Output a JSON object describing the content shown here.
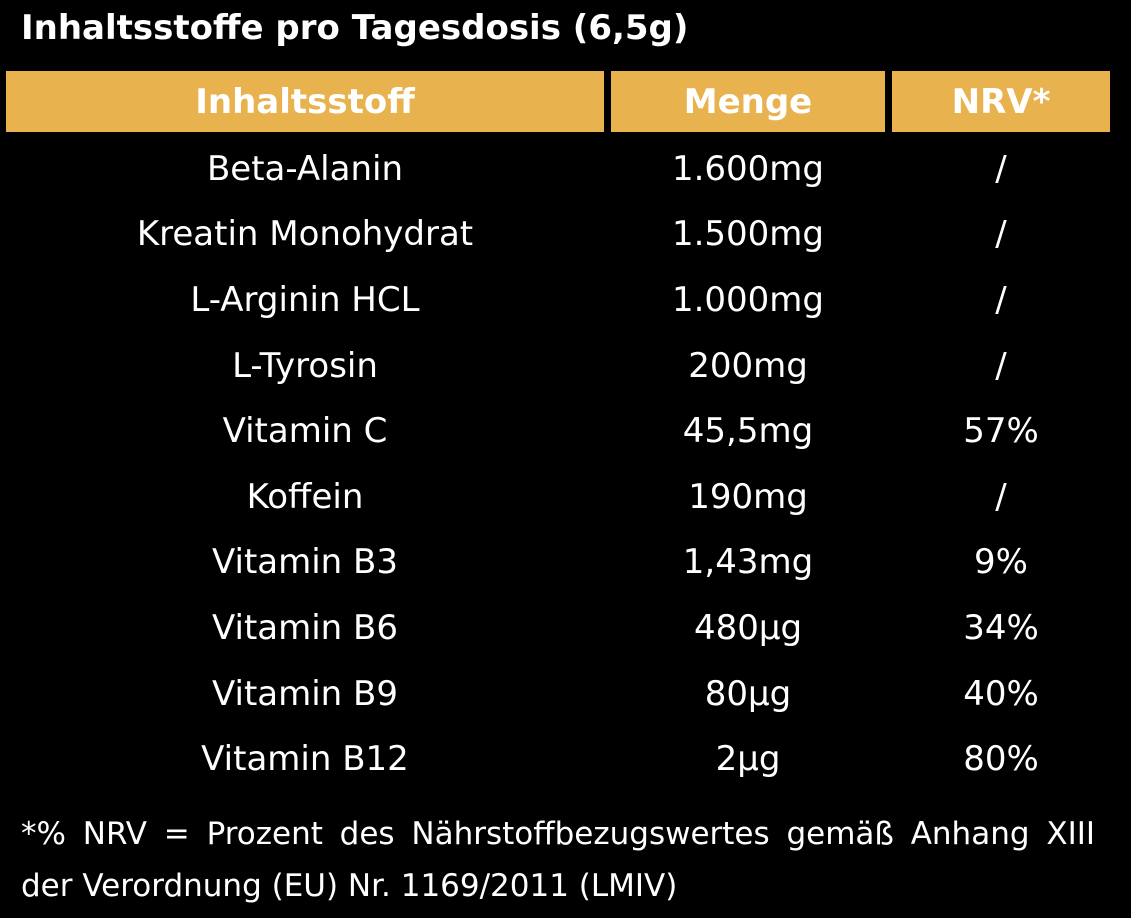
{
  "title": "Inhaltsstoffe pro Tagesdosis (6,5g)",
  "table": {
    "headers": [
      "Inhaltsstoff",
      "Menge",
      "NRV*"
    ],
    "rows": [
      [
        "Beta-Alanin",
        "1.600mg",
        "/"
      ],
      [
        "Kreatin Monohydrat",
        "1.500mg",
        "/"
      ],
      [
        "L-Arginin HCL",
        "1.000mg",
        "/"
      ],
      [
        "L-Tyrosin",
        "200mg",
        "/"
      ],
      [
        "Vitamin C",
        "45,5mg",
        "57%"
      ],
      [
        "Koffein",
        "190mg",
        "/"
      ],
      [
        "Vitamin B3",
        "1,43mg",
        "9%"
      ],
      [
        "Vitamin B6",
        "480µg",
        "34%"
      ],
      [
        "Vitamin B9",
        "80µg",
        "40%"
      ],
      [
        "Vitamin B12",
        "2µg",
        "80%"
      ]
    ]
  },
  "footnote": "*% NRV = Prozent des Nährstoffbezugswertes gemäß Anhang XIII der Verordnung (EU) Nr. 1169/2011 (LMIV)",
  "colors": {
    "background": "#000000",
    "header_background": "#e8b24e",
    "text": "#ffffff"
  }
}
